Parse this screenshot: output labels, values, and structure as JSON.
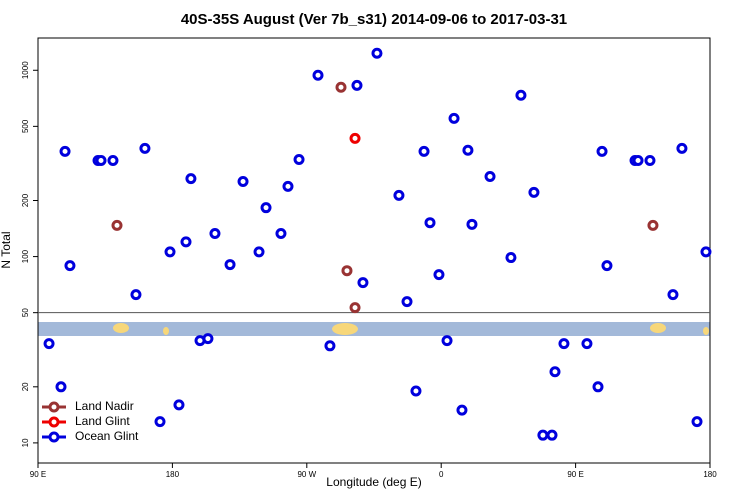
{
  "chart_data": {
    "type": "scatter",
    "title": "40S-35S August (Ver 7b_s31)   2014-09-06 to 2017-03-31",
    "x_label": "Longitude (deg E)",
    "y_label": "N Total",
    "log_y": true,
    "legend": "lower left",
    "hline": 50,
    "xlim": [
      90,
      540
    ],
    "xticks": [
      {
        "value": 90,
        "label": "90 E"
      },
      180,
      {
        "value": 270,
        "label": "90 W"
      },
      {
        "value": 360,
        "label": "0"
      },
      {
        "value": 450,
        "label": "90 E"
      },
      {
        "value": 540,
        "label": "180"
      }
    ],
    "ylim": [
      7.8,
      1490
    ],
    "yticks": [
      10,
      20,
      50,
      100,
      200,
      500,
      1000
    ],
    "series": [
      {
        "name": "Land Nadir",
        "color": "#993333",
        "x": [
          142.9,
          292.9,
          296.9,
          302.3,
          501.8
        ],
        "values": [
          147,
          811,
          84,
          53.2,
          147
        ]
      },
      {
        "name": "Land Glint",
        "color": "#ee0000",
        "x": [
          302.3
        ],
        "values": [
          431
        ]
      },
      {
        "name": "Ocean Glint",
        "color": "#0000dd",
        "x": [
          108.1,
          111.4,
          130.2,
          132.2,
          140.2,
          161.6,
          155.6,
          178.4,
          189.1,
          192.4,
          208.5,
          218.6,
          227.3,
          238,
          242.7,
          252.7,
          257.4,
          264.8,
          277.5,
          303.6,
          317,
          307.6,
          331.7,
          337.1,
          348.5,
          352.5,
          358.5,
          368.6,
          377.9,
          380.6,
          392.7,
          406.7,
          413.4,
          422.1,
          467.7,
          471,
          489.8,
          491.8,
          499.8,
          521.2,
          515.2,
          537.3,
          97.4,
          105.4,
          171.7,
          184.4,
          198.5,
          203.8,
          285.5,
          343.1,
          363.9,
          373.9,
          428.1,
          434.2,
          436.2,
          442.2,
          457.6,
          465,
          531.3
        ],
        "values": [
          367,
          89.4,
          328,
          328,
          328,
          381,
          62.5,
          106,
          120,
          262,
          133,
          90.6,
          253,
          106,
          183,
          133,
          238,
          332,
          940,
          830,
          1234,
          72.5,
          213,
          57.3,
          367,
          152,
          80,
          552,
          372,
          149,
          269,
          98.8,
          734,
          221,
          367,
          89.4,
          328,
          328,
          328,
          381,
          62.5,
          106,
          34.1,
          20,
          13,
          16,
          35.4,
          36.3,
          33.2,
          19,
          35.4,
          15,
          11,
          11,
          24.1,
          34.1,
          34.1,
          20,
          13
        ]
      }
    ]
  }
}
